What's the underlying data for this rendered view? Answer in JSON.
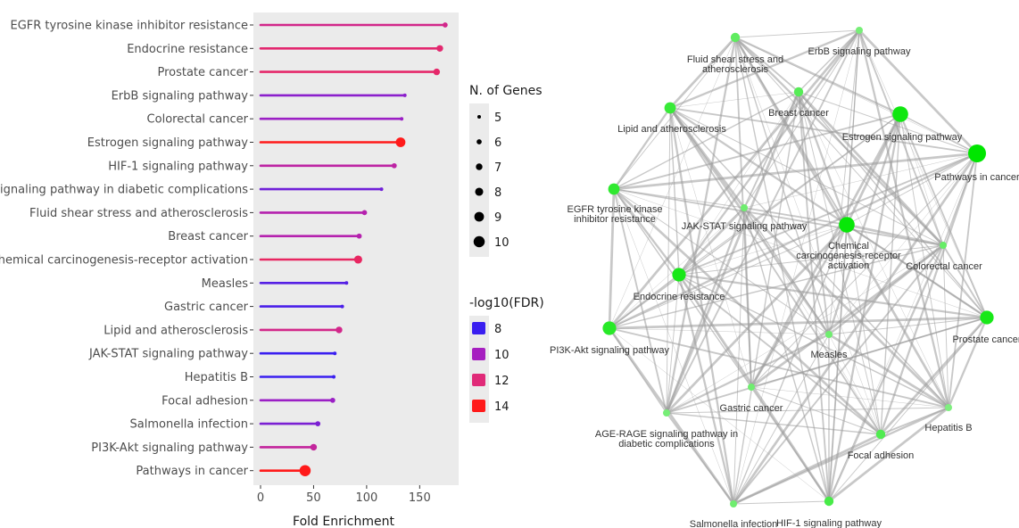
{
  "chart_data": [
    {
      "type": "lollipop",
      "xlabel": "Fold Enrichment",
      "xlim": [
        0,
        180
      ],
      "xticks": [
        0,
        50,
        100,
        150
      ],
      "grid": false,
      "panel_background": "#ebebeb",
      "categories": [
        "EGFR tyrosine kinase inhibitor resistance",
        "Endocrine resistance",
        "Prostate cancer",
        "ErbB signaling pathway",
        "Colorectal cancer",
        "Estrogen signaling pathway",
        "HIF-1 signaling pathway",
        "AGE-RAGE signaling pathway in diabetic complications",
        "Fluid shear stress and atherosclerosis",
        "Breast cancer",
        "Chemical carcinogenesis-receptor activation",
        "Measles",
        "Gastric cancer",
        "Lipid and atherosclerosis",
        "JAK-STAT signaling pathway",
        "Hepatitis B",
        "Focal adhesion",
        "Salmonella infection",
        "PI3K-Akt signaling pathway",
        "Pathways in cancer"
      ],
      "fold_enrichment": [
        174,
        169,
        166,
        136,
        133,
        132,
        126,
        114,
        98,
        93,
        92,
        81,
        77,
        74,
        70,
        69,
        68,
        54,
        50,
        42
      ],
      "n_genes": [
        6,
        7,
        7,
        5,
        5,
        9,
        6,
        5,
        6,
        6,
        8,
        5,
        5,
        7,
        5,
        5,
        6,
        6,
        7,
        10
      ],
      "neg_log10_fdr": [
        11.5,
        12.2,
        12.3,
        9.5,
        9.8,
        14.0,
        10.8,
        9.0,
        10.5,
        10.5,
        12.5,
        8.5,
        8.3,
        11.5,
        8.0,
        8.0,
        9.8,
        9.2,
        11.0,
        14.0
      ],
      "legend_size": {
        "title": "N. of Genes",
        "values": [
          5,
          6,
          7,
          8,
          9,
          10
        ],
        "labels": [
          "5",
          "6",
          "7",
          "8",
          "9",
          "10"
        ]
      },
      "legend_color": {
        "title": "-log10(FDR)",
        "values": [
          8,
          10,
          12,
          14
        ],
        "labels": [
          "8",
          "10",
          "12",
          "14"
        ],
        "colors": [
          "#3a1ff0",
          "#a61fc0",
          "#e02a78",
          "#ff1a1a"
        ]
      },
      "legend_position": "right"
    },
    {
      "type": "network",
      "node_color_range": [
        "#9ff09f",
        "#00e600"
      ],
      "edge_color": "#9a9a9a",
      "nodes": [
        {
          "name": "ErbB signaling pathway",
          "size": 5,
          "intensity": 0.25
        },
        {
          "name": "Fluid shear stress and atherosclerosis",
          "size": 6,
          "intensity": 0.4
        },
        {
          "name": "Breast cancer",
          "size": 6,
          "intensity": 0.45
        },
        {
          "name": "Estrogen signaling pathway",
          "size": 9,
          "intensity": 0.9
        },
        {
          "name": "Lipid and atherosclerosis",
          "size": 7,
          "intensity": 0.65
        },
        {
          "name": "Pathways in cancer",
          "size": 10,
          "intensity": 1.0
        },
        {
          "name": "EGFR tyrosine kinase inhibitor resistance",
          "size": 7,
          "intensity": 0.7
        },
        {
          "name": "JAK-STAT signaling pathway",
          "size": 5,
          "intensity": 0.3
        },
        {
          "name": "Chemical carcinogenesis-receptor activation",
          "size": 9,
          "intensity": 0.95
        },
        {
          "name": "Colorectal cancer",
          "size": 5,
          "intensity": 0.35
        },
        {
          "name": "Endocrine resistance",
          "size": 8,
          "intensity": 0.85
        },
        {
          "name": "PI3K-Akt signaling pathway",
          "size": 8,
          "intensity": 0.75
        },
        {
          "name": "Prostate cancer",
          "size": 8,
          "intensity": 0.85
        },
        {
          "name": "Measles",
          "size": 5,
          "intensity": 0.3
        },
        {
          "name": "Gastric cancer",
          "size": 5,
          "intensity": 0.3
        },
        {
          "name": "AGE-RAGE signaling pathway in diabetic complications",
          "size": 5,
          "intensity": 0.25
        },
        {
          "name": "Hepatitis B",
          "size": 5,
          "intensity": 0.2
        },
        {
          "name": "Focal adhesion",
          "size": 6,
          "intensity": 0.5
        },
        {
          "name": "Salmonella infection",
          "size": 5,
          "intensity": 0.3
        },
        {
          "name": "HIF-1 signaling pathway",
          "size": 6,
          "intensity": 0.55
        }
      ],
      "network_labels": {
        "ErbB signaling pathway": [
          "ErbB signaling pathway"
        ],
        "Fluid shear stress and atherosclerosis": [
          "Fluid shear stress and",
          "atherosclerosis"
        ],
        "Breast cancer": [
          "Breast cancer"
        ],
        "Estrogen signaling pathway": [
          "Estrogen signaling pathway"
        ],
        "Lipid and atherosclerosis": [
          "Lipid and atherosclerosis"
        ],
        "Pathways in cancer": [
          "Pathways in cancer"
        ],
        "EGFR tyrosine kinase inhibitor resistance": [
          "EGFR tyrosine kinase",
          "inhibitor resistance"
        ],
        "JAK-STAT signaling pathway": [
          "JAK-STAT signaling pathway"
        ],
        "Chemical carcinogenesis-receptor activation": [
          "Chemical",
          "carcinogenesis-receptor",
          "activation"
        ],
        "Colorectal cancer": [
          "Colorectal cancer"
        ],
        "Endocrine resistance": [
          "Endocrine resistance"
        ],
        "PI3K-Akt signaling pathway": [
          "PI3K-Akt signaling pathway"
        ],
        "Prostate cancer": [
          "Prostate cancer"
        ],
        "Measles": [
          "Measles"
        ],
        "Gastric cancer": [
          "Gastric cancer"
        ],
        "AGE-RAGE signaling pathway in diabetic complications": [
          "AGE-RAGE signaling pathway in",
          "diabetic complications"
        ],
        "Hepatitis B": [
          "Hepatitis B"
        ],
        "Focal adhesion": [
          "Focal adhesion"
        ],
        "Salmonella infection": [
          "Salmonella infection"
        ],
        "HIF-1 signaling pathway": [
          "HIF-1 signaling pathway"
        ]
      }
    }
  ]
}
